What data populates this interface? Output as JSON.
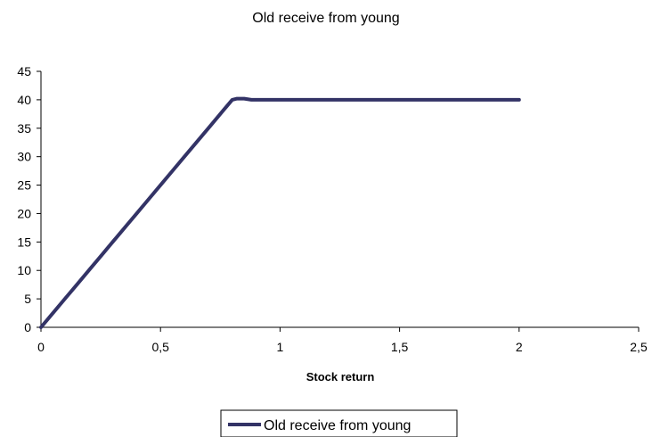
{
  "chart_data": {
    "type": "line",
    "title": "Old receive from young",
    "xlabel": "Stock return",
    "ylabel": "",
    "xlim": [
      0,
      2.5
    ],
    "ylim": [
      0,
      45
    ],
    "x_ticks": [
      "0",
      "0,5",
      "1",
      "1,5",
      "2",
      "2,5"
    ],
    "x_tick_values": [
      0,
      0.5,
      1,
      1.5,
      2,
      2.5
    ],
    "y_ticks": [
      "0",
      "5",
      "10",
      "15",
      "20",
      "25",
      "30",
      "35",
      "40",
      "45"
    ],
    "y_tick_values": [
      0,
      5,
      10,
      15,
      20,
      25,
      30,
      35,
      40,
      45
    ],
    "grid": false,
    "legend_position": "bottom",
    "series": [
      {
        "name": "Old receive from young",
        "color": "#333366",
        "x": [
          0,
          0.05,
          0.1,
          0.15,
          0.2,
          0.25,
          0.3,
          0.35,
          0.4,
          0.45,
          0.5,
          0.55,
          0.6,
          0.65,
          0.7,
          0.75,
          0.8,
          0.82,
          0.85,
          0.88,
          0.9,
          1.0,
          1.5,
          2.0
        ],
        "y": [
          0,
          2.5,
          5,
          7.5,
          10,
          12.5,
          15,
          17.5,
          20,
          22.5,
          25,
          27.5,
          30,
          32.5,
          35,
          37.5,
          40,
          40.2,
          40.2,
          40,
          40,
          40,
          40,
          40
        ]
      }
    ]
  }
}
